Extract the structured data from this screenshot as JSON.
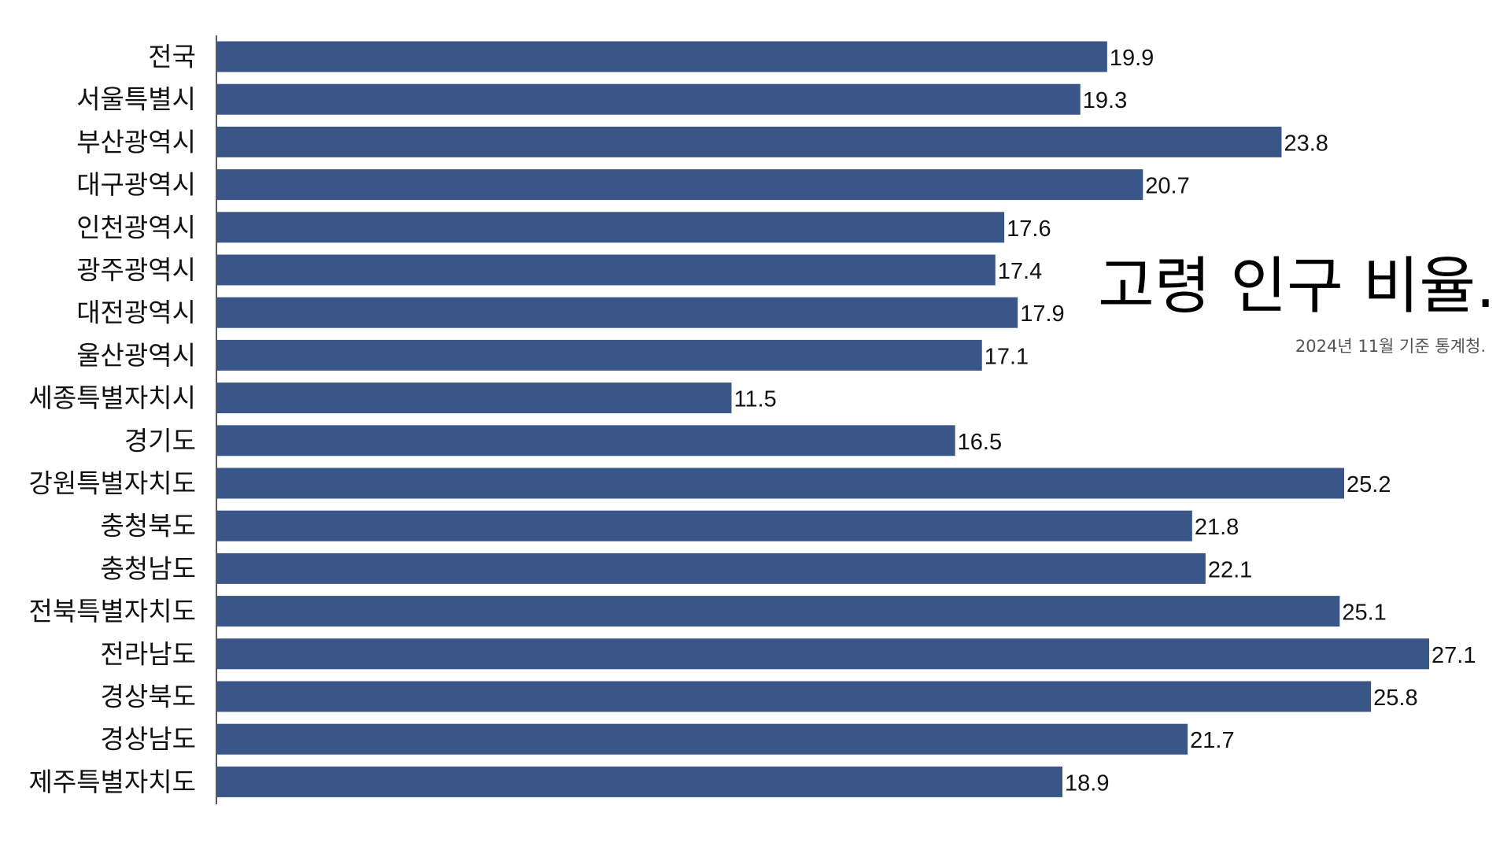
{
  "chart_data": {
    "type": "bar",
    "orientation": "horizontal",
    "title": "고령 인구 비율.",
    "subtitle": "2024년 11월 기준 통계청.",
    "categories": [
      "전국",
      "서울특별시",
      "부산광역시",
      "대구광역시",
      "인천광역시",
      "광주광역시",
      "대전광역시",
      "울산광역시",
      "세종특별자치시",
      "경기도",
      "강원특별자치도",
      "충청북도",
      "충청남도",
      "전북특별자치도",
      "전라남도",
      "경상북도",
      "경상남도",
      "제주특별자치도"
    ],
    "values": [
      19.9,
      19.3,
      23.8,
      20.7,
      17.6,
      17.4,
      17.9,
      17.1,
      11.5,
      16.5,
      25.2,
      21.8,
      22.1,
      25.1,
      27.1,
      25.8,
      21.7,
      18.9
    ],
    "value_labels": [
      "19.9",
      "19.3",
      "23.8",
      "20.7",
      "17.6",
      "17.4",
      "17.9",
      "17.1",
      "11.5",
      "16.5",
      "25.2",
      "21.8",
      "22.1",
      "25.1",
      "27.1",
      "25.8",
      "21.7",
      "18.9"
    ],
    "xlim": [
      0,
      27.1
    ],
    "bar_color": "#3a5688",
    "grid": false,
    "data_labels": true,
    "legend": "none"
  }
}
